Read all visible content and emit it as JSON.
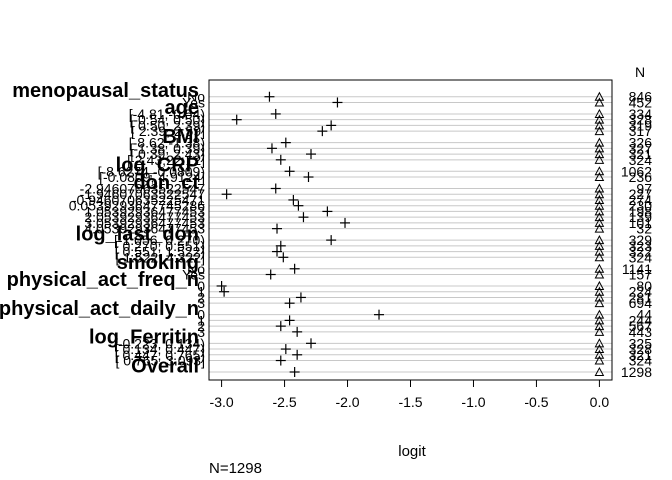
{
  "chart_data": {
    "type": "dotplot",
    "xlabel": "logit",
    "footnote": "N=1298",
    "n_header": "N",
    "xlim": [
      -3.1,
      0.1
    ],
    "xticks": [
      "-3.0",
      "-2.5",
      "-2.0",
      "-1.5",
      "-1.0",
      "-0.5",
      "0.0"
    ],
    "xtick_values": [
      -3.0,
      -2.5,
      -2.0,
      -1.5,
      -1.0,
      -0.5,
      0.0
    ],
    "grid": true,
    "marker": "+",
    "n_marker": "triangle",
    "rows": [
      {
        "kind": "var",
        "label": "menopausal_status",
        "value": null,
        "n": null
      },
      {
        "kind": "level",
        "label": "No",
        "value": -2.62,
        "n": "846"
      },
      {
        "kind": "level",
        "label": "Yes",
        "value": -2.08,
        "n": "452"
      },
      {
        "kind": "var",
        "label": "age",
        "value": null,
        "n": null
      },
      {
        "kind": "level",
        "label": "[-4.81,-0.54)",
        "value": -2.57,
        "n": "334"
      },
      {
        "kind": "level",
        "label": "[-0.54, 0.50)",
        "value": -2.88,
        "n": "328"
      },
      {
        "kind": "level",
        "label": "[ 0.50, 2.39)",
        "value": -2.13,
        "n": "319"
      },
      {
        "kind": "level",
        "label": "[ 2.39, 2.59]",
        "value": -2.2,
        "n": "317"
      },
      {
        "kind": "var",
        "label": "BMI",
        "value": null,
        "n": null
      },
      {
        "kind": "level",
        "label": "[-8.62,-1.38)",
        "value": -2.49,
        "n": "326"
      },
      {
        "kind": "level",
        "label": "[-1.38, 0.39)",
        "value": -2.6,
        "n": "327"
      },
      {
        "kind": "level",
        "label": "[ 0.39, 2.43)",
        "value": -2.29,
        "n": "321"
      },
      {
        "kind": "level",
        "label": "[ 2.43,22.12]",
        "value": -2.53,
        "n": "324"
      },
      {
        "kind": "var",
        "label": "log_CRP",
        "value": null,
        "n": null
      },
      {
        "kind": "level",
        "label": "[-8.6274,-0.0809)",
        "value": -2.46,
        "n": "1062"
      },
      {
        "kind": "level",
        "label": "[-0.0809, 4.9124]",
        "value": -2.31,
        "n": "236"
      },
      {
        "kind": "var",
        "label": "don_ct",
        "value": null,
        "n": null
      },
      {
        "kind": "level",
        "label": "-2.94607063522547",
        "value": -2.57,
        "n": "97"
      },
      {
        "kind": "level",
        "label": "-1.94607063522547",
        "value": -2.96,
        "n": "227"
      },
      {
        "kind": "level",
        "label": "-0.946070635225471",
        "value": -2.43,
        "n": "274"
      },
      {
        "kind": "level",
        "label": "0.0539293647745286",
        "value": -2.39,
        "n": "230"
      },
      {
        "kind": "level",
        "label": "1.05392936477453",
        "value": -2.16,
        "n": "198"
      },
      {
        "kind": "level",
        "label": "2.05392936477453",
        "value": -2.35,
        "n": "139"
      },
      {
        "kind": "level",
        "label": "3.05392936477453",
        "value": -2.02,
        "n": "101"
      },
      {
        "kind": "level",
        "label": "4.05392936477453",
        "value": -2.56,
        "n": "32"
      },
      {
        "kind": "var",
        "label": "log_last_don",
        "value": null,
        "n": null
      },
      {
        "kind": "level",
        "label": "[-1.056, 0.270)",
        "value": -2.13,
        "n": "329"
      },
      {
        "kind": "level",
        "label": "[ 0.270, 0.551)",
        "value": -2.53,
        "n": "323"
      },
      {
        "kind": "level",
        "label": "[ 0.551, 1.522)",
        "value": -2.56,
        "n": "322"
      },
      {
        "kind": "level",
        "label": "[ 1.522, 4.322]",
        "value": -2.51,
        "n": "324"
      },
      {
        "kind": "var",
        "label": "smoking",
        "value": null,
        "n": null
      },
      {
        "kind": "level",
        "label": "No",
        "value": -2.42,
        "n": "1141"
      },
      {
        "kind": "level",
        "label": "Yes",
        "value": -2.61,
        "n": "157"
      },
      {
        "kind": "var",
        "label": "physical_act_freq_n",
        "value": null,
        "n": null
      },
      {
        "kind": "level",
        "label": "0",
        "value": -3.0,
        "n": "80"
      },
      {
        "kind": "level",
        "label": "1",
        "value": -2.98,
        "n": "224"
      },
      {
        "kind": "level",
        "label": "2",
        "value": -2.37,
        "n": "281"
      },
      {
        "kind": "level",
        "label": "3",
        "value": -2.46,
        "n": "694"
      },
      {
        "kind": "var",
        "label": "physical_act_daily_n",
        "value": null,
        "n": null
      },
      {
        "kind": "level",
        "label": "0",
        "value": -1.75,
        "n": "44"
      },
      {
        "kind": "level",
        "label": "1",
        "value": -2.46,
        "n": "244"
      },
      {
        "kind": "level",
        "label": "2",
        "value": -2.53,
        "n": "567"
      },
      {
        "kind": "level",
        "label": "3",
        "value": -2.4,
        "n": "443"
      },
      {
        "kind": "var",
        "label": "log_Ferritin",
        "value": null,
        "n": null
      },
      {
        "kind": "level",
        "label": "[-0.223, 0.134)",
        "value": -2.29,
        "n": "325"
      },
      {
        "kind": "level",
        "label": "[ 0.134, 0.447)",
        "value": -2.49,
        "n": "328"
      },
      {
        "kind": "level",
        "label": "[ 0.447, 0.765)",
        "value": -2.4,
        "n": "321"
      },
      {
        "kind": "level",
        "label": "[ 0.765, 3.093]",
        "value": -2.53,
        "n": "324"
      },
      {
        "kind": "var",
        "label": "Overall",
        "value": null,
        "n": null
      },
      {
        "kind": "level",
        "label": "",
        "value": -2.42,
        "n": "1298"
      }
    ]
  }
}
